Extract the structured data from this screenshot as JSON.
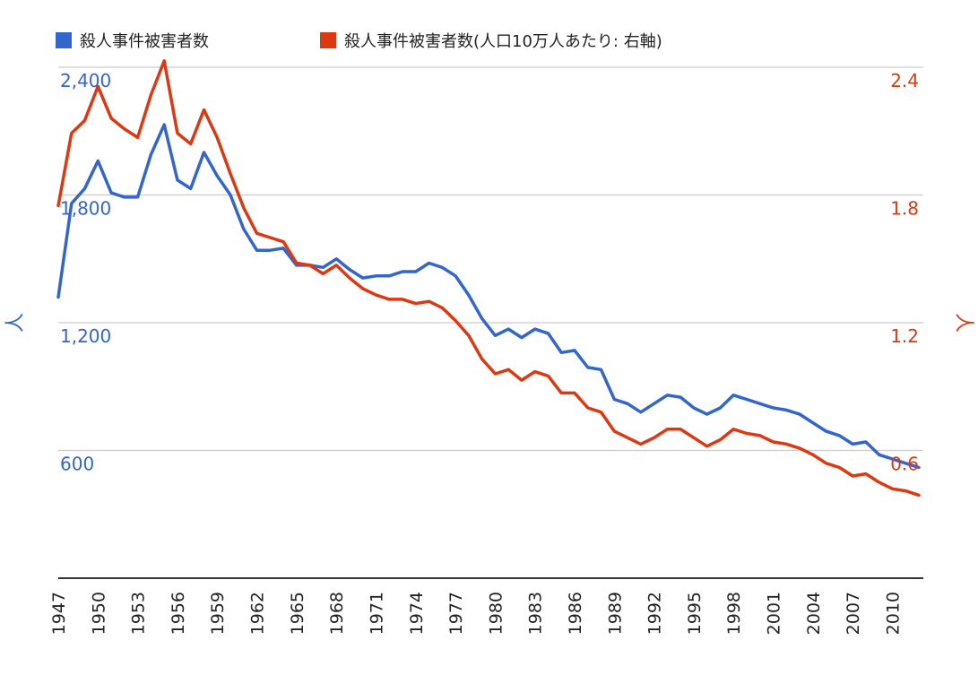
{
  "chart_data": {
    "type": "line",
    "title": "",
    "legend_position": "top-left",
    "grid": true,
    "colors": {
      "left_axis": "#3366cc",
      "right_axis": "#dc3912",
      "gridline": "#cccccc",
      "baseline": "#333333",
      "text": "#222222"
    },
    "ylabel_left": "人",
    "ylabel_right": "人",
    "ylim_left": [
      0,
      2400
    ],
    "ylim_right": [
      0,
      2.4
    ],
    "y_ticks_left": [
      "600",
      "1,200",
      "1,800",
      "2,400"
    ],
    "y_tick_values_left": [
      600,
      1200,
      1800,
      2400
    ],
    "y_ticks_right": [
      "0.6",
      "1.2",
      "1.8",
      "2.4"
    ],
    "y_tick_values_right": [
      0.6,
      1.2,
      1.8,
      2.4
    ],
    "x_tick_labels": [
      "1947",
      "1950",
      "1953",
      "1956",
      "1959",
      "1962",
      "1965",
      "1968",
      "1971",
      "1974",
      "1977",
      "1980",
      "1983",
      "1986",
      "1989",
      "1992",
      "1995",
      "1998",
      "2001",
      "2004",
      "2007",
      "2010"
    ],
    "x": [
      1947,
      1948,
      1949,
      1950,
      1951,
      1952,
      1953,
      1954,
      1955,
      1956,
      1957,
      1958,
      1959,
      1960,
      1961,
      1962,
      1963,
      1964,
      1965,
      1966,
      1967,
      1968,
      1969,
      1970,
      1971,
      1972,
      1973,
      1974,
      1975,
      1976,
      1977,
      1978,
      1979,
      1980,
      1981,
      1982,
      1983,
      1984,
      1985,
      1986,
      1987,
      1988,
      1989,
      1990,
      1991,
      1992,
      1993,
      1994,
      1995,
      1996,
      1997,
      1998,
      1999,
      2000,
      2001,
      2002,
      2003,
      2004,
      2005,
      2006,
      2007,
      2008,
      2009,
      2010,
      2011,
      2012
    ],
    "series": [
      {
        "name": "殺人事件被害者数",
        "axis": "left",
        "color": "#3366cc",
        "values": [
          1320,
          1760,
          1830,
          1960,
          1810,
          1790,
          1790,
          1990,
          2130,
          1870,
          1830,
          2000,
          1890,
          1800,
          1640,
          1540,
          1540,
          1550,
          1470,
          1470,
          1460,
          1500,
          1450,
          1410,
          1420,
          1420,
          1440,
          1440,
          1480,
          1460,
          1420,
          1330,
          1220,
          1140,
          1170,
          1130,
          1170,
          1150,
          1060,
          1070,
          990,
          980,
          840,
          820,
          780,
          820,
          860,
          850,
          800,
          770,
          800,
          860,
          840,
          820,
          800,
          790,
          770,
          730,
          690,
          670,
          630,
          640,
          580,
          560,
          540,
          520
        ]
      },
      {
        "name": "殺人事件被害者数(人口10万人あたり: 右軸)",
        "axis": "right",
        "color": "#dc3912",
        "values": [
          1.75,
          2.09,
          2.15,
          2.31,
          2.16,
          2.11,
          2.07,
          2.27,
          2.43,
          2.09,
          2.04,
          2.2,
          2.07,
          1.9,
          1.74,
          1.62,
          1.6,
          1.58,
          1.48,
          1.47,
          1.43,
          1.47,
          1.41,
          1.36,
          1.33,
          1.31,
          1.31,
          1.29,
          1.3,
          1.27,
          1.21,
          1.14,
          1.03,
          0.96,
          0.98,
          0.93,
          0.97,
          0.95,
          0.87,
          0.87,
          0.8,
          0.78,
          0.69,
          0.66,
          0.63,
          0.66,
          0.7,
          0.7,
          0.66,
          0.62,
          0.65,
          0.7,
          0.68,
          0.67,
          0.64,
          0.63,
          0.61,
          0.58,
          0.54,
          0.52,
          0.48,
          0.49,
          0.45,
          0.42,
          0.41,
          0.39
        ]
      }
    ]
  }
}
